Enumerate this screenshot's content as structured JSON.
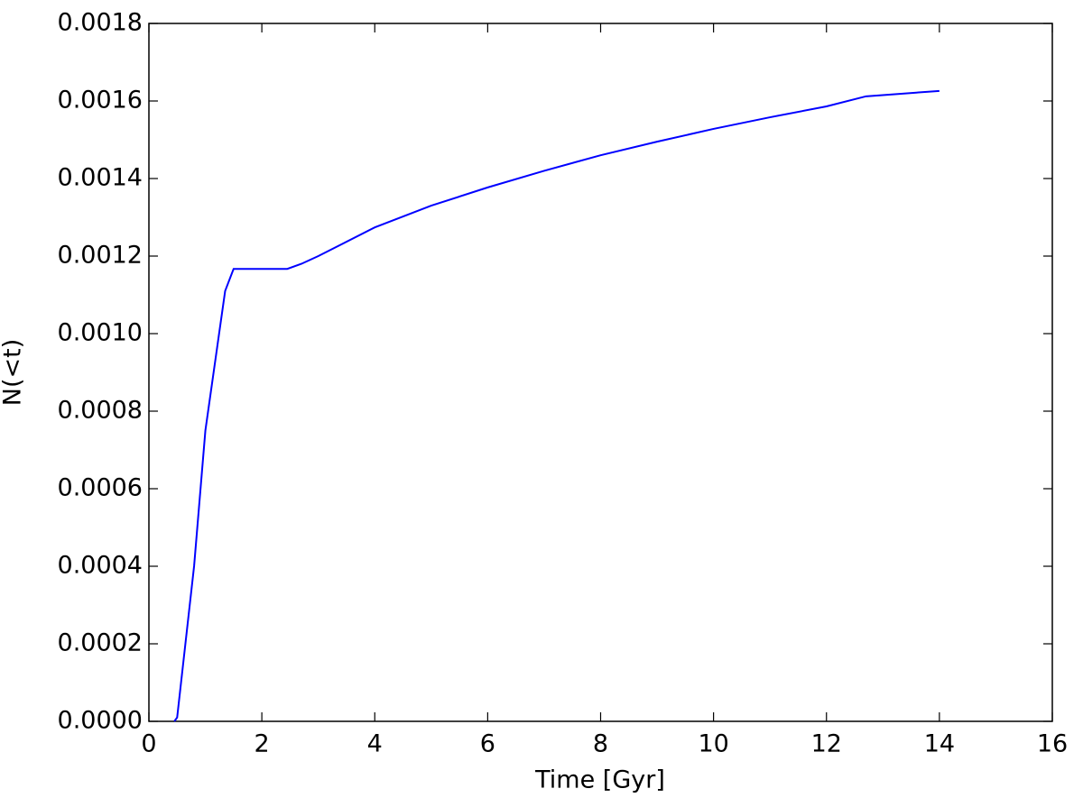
{
  "chart_data": {
    "type": "line",
    "x_label": "Time [Gyr]",
    "y_label": "N(<t)",
    "x": [
      0.45,
      0.5,
      0.8,
      1.0,
      1.35,
      1.5,
      2.45,
      2.7,
      3,
      4,
      5,
      6,
      7,
      8,
      9,
      10,
      11,
      12,
      12.7,
      14
    ],
    "series": [
      {
        "color": "#0000ff",
        "values": [
          0,
          1e-05,
          0.0004,
          0.00075,
          0.00111,
          0.001167,
          0.001167,
          0.00118,
          0.0012,
          0.001274,
          0.00133,
          0.001377,
          0.00142,
          0.00146,
          0.001495,
          0.001528,
          0.001558,
          0.001586,
          0.001612,
          0.001626
        ]
      }
    ],
    "xlim": [
      0,
      16
    ],
    "xticks": [
      0,
      2,
      4,
      6,
      8,
      10,
      12,
      14,
      16
    ],
    "ylim": [
      0,
      0.0018
    ],
    "yticks": [
      {
        "value": 0,
        "label": "0.0000"
      },
      {
        "value": 0.0002,
        "label": "0.0002"
      },
      {
        "value": 0.0004,
        "label": "0.0004"
      },
      {
        "value": 0.0006,
        "label": "0.0006"
      },
      {
        "value": 0.0008,
        "label": "0.0008"
      },
      {
        "value": 0.001,
        "label": "0.0010"
      },
      {
        "value": 0.0012,
        "label": "0.0012"
      },
      {
        "value": 0.0014,
        "label": "0.0014"
      },
      {
        "value": 0.0016,
        "label": "0.0016"
      },
      {
        "value": 0.0018,
        "label": "0.0018"
      }
    ],
    "grid": false
  }
}
